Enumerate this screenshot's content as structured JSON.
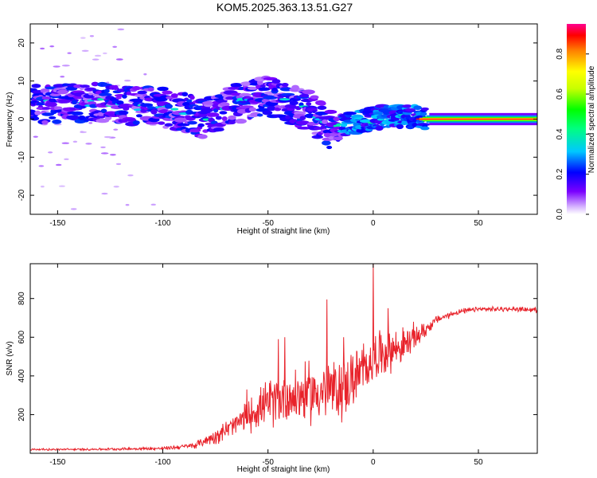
{
  "title": "KOM5.2025.363.13.51.G27",
  "chart_data": [
    {
      "type": "heatmap",
      "title": "KOM5.2025.363.13.51.G27",
      "xlabel": "Height of straight line (km)",
      "ylabel": "Frequency (Hz)",
      "xlim": [
        -163,
        78
      ],
      "ylim": [
        -25,
        25
      ],
      "xticks": [
        -150,
        -100,
        -50,
        0,
        50
      ],
      "yticks": [
        -20,
        -10,
        0,
        10,
        20
      ],
      "colorbar": {
        "label": "Normalized spectral amplitude",
        "range": [
          0,
          0.95
        ],
        "ticks": [
          0.0,
          0.2,
          0.4,
          0.6,
          0.8
        ]
      },
      "ridge": {
        "description_points_x": [
          -160,
          -145,
          -130,
          -115,
          -100,
          -90,
          -80,
          -70,
          -60,
          -50,
          -40,
          -30,
          -20,
          -10,
          0,
          10,
          20,
          30,
          50,
          78
        ],
        "description_points_f": [
          4,
          4,
          4.5,
          3.5,
          3,
          2,
          0,
          3,
          5,
          6,
          4,
          2,
          -3,
          -1,
          0,
          1,
          0.5,
          0,
          0,
          0
        ],
        "peak_amplitude_region_x": [
          25,
          78
        ],
        "peak_amplitude": 0.95
      }
    },
    {
      "type": "line",
      "xlabel": "Height of straight line (km)",
      "ylabel": "SNR (v/v)",
      "xlim": [
        -163,
        78
      ],
      "ylim": [
        0,
        980
      ],
      "xticks": [
        -150,
        -100,
        -50,
        0,
        50
      ],
      "yticks": [
        200,
        400,
        600,
        800
      ],
      "series": [
        {
          "name": "SNR",
          "color": "#e8222a",
          "envelope_x": [
            -163,
            -140,
            -100,
            -85,
            -75,
            -65,
            -55,
            -45,
            -35,
            -25,
            -15,
            -10,
            -5,
            0,
            5,
            10,
            15,
            20,
            25,
            30,
            40,
            50,
            60,
            70,
            78
          ],
          "envelope_y": [
            20,
            20,
            25,
            40,
            90,
            150,
            230,
            280,
            300,
            320,
            330,
            380,
            420,
            500,
            520,
            540,
            560,
            600,
            640,
            690,
            730,
            745,
            745,
            745,
            740
          ],
          "noise": [
            5,
            5,
            8,
            15,
            40,
            60,
            100,
            130,
            150,
            160,
            160,
            150,
            150,
            120,
            120,
            100,
            90,
            70,
            40,
            20,
            15,
            12,
            12,
            12,
            12
          ],
          "spikes": [
            {
              "x": -60,
              "y": 330
            },
            {
              "x": -45,
              "y": 590
            },
            {
              "x": -42,
              "y": 600
            },
            {
              "x": -22,
              "y": 795
            },
            {
              "x": -14,
              "y": 600
            },
            {
              "x": 0,
              "y": 980
            },
            {
              "x": 7,
              "y": 750
            }
          ]
        }
      ]
    }
  ]
}
